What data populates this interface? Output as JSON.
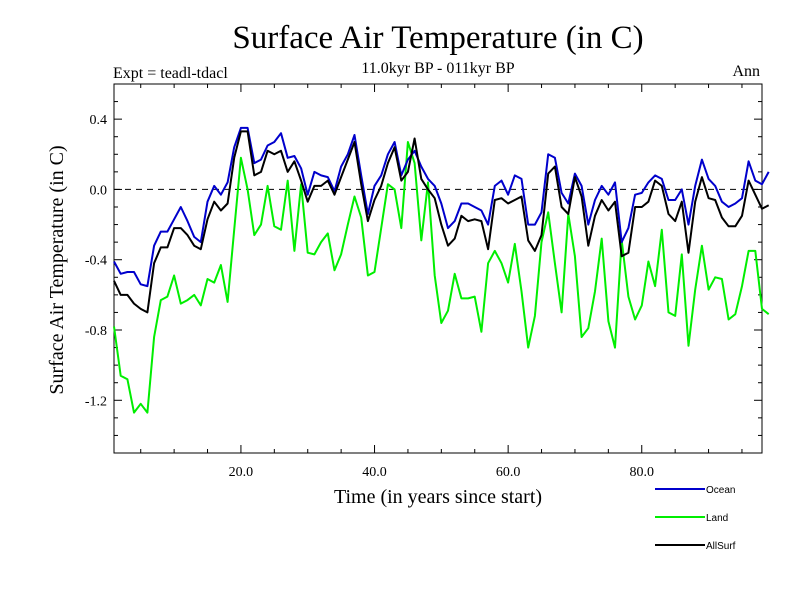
{
  "chart_data": {
    "type": "line",
    "title": "Surface Air Temperature (in C)",
    "subtitle": "11.0kyr BP - 011kyr BP",
    "left_label": "Expt = teadl-tdacl",
    "right_label": "Ann",
    "xlabel": "Time (in years since start)",
    "ylabel": "Surface Air Temperature (in C)",
    "xlim": [
      1,
      98
    ],
    "ylim": [
      -1.5,
      0.6
    ],
    "xticks": [
      20,
      40,
      60,
      80
    ],
    "xtick_labels": [
      "20.0",
      "40.0",
      "60.0",
      "80.0"
    ],
    "yticks": [
      0.4,
      0.0,
      -0.4,
      -0.8,
      -1.2
    ],
    "ytick_labels": [
      "0.4",
      "0.0",
      "-0.4",
      "-0.8",
      "-1.2"
    ],
    "reference_line": 0.0,
    "x_start": 1,
    "series": [
      {
        "name": "Ocean",
        "color": "#0000cc",
        "values": [
          -0.41,
          -0.48,
          -0.47,
          -0.47,
          -0.54,
          -0.55,
          -0.32,
          -0.24,
          -0.24,
          -0.17,
          -0.1,
          -0.18,
          -0.27,
          -0.3,
          -0.07,
          0.02,
          -0.03,
          0.04,
          0.24,
          0.35,
          0.35,
          0.15,
          0.17,
          0.25,
          0.27,
          0.32,
          0.18,
          0.19,
          0.12,
          -0.03,
          0.1,
          0.08,
          0.07,
          -0.01,
          0.13,
          0.2,
          0.31,
          0.08,
          -0.14,
          0.02,
          0.08,
          0.2,
          0.27,
          0.08,
          0.17,
          0.22,
          0.13,
          0.06,
          0.02,
          -0.08,
          -0.22,
          -0.18,
          -0.08,
          -0.08,
          -0.1,
          -0.12,
          -0.2,
          0.02,
          0.05,
          -0.03,
          0.08,
          0.06,
          -0.2,
          -0.2,
          -0.13,
          0.2,
          0.18,
          -0.02,
          -0.08,
          0.09,
          0.02,
          -0.2,
          -0.06,
          0.02,
          -0.03,
          0.04,
          -0.3,
          -0.22,
          -0.03,
          -0.02,
          0.04,
          0.08,
          0.06,
          -0.06,
          -0.06,
          0.0,
          -0.2,
          0.02,
          0.17,
          0.06,
          0.02,
          -0.07,
          -0.1,
          -0.08,
          -0.05,
          0.16,
          0.05,
          0.03,
          0.1
        ]
      },
      {
        "name": "Land",
        "color": "#00ee00",
        "values": [
          -0.78,
          -1.06,
          -1.08,
          -1.27,
          -1.22,
          -1.27,
          -0.84,
          -0.63,
          -0.61,
          -0.49,
          -0.65,
          -0.63,
          -0.6,
          -0.66,
          -0.51,
          -0.53,
          -0.43,
          -0.64,
          -0.23,
          0.18,
          0.0,
          -0.26,
          -0.2,
          0.02,
          -0.21,
          -0.23,
          0.05,
          -0.35,
          0.03,
          -0.36,
          -0.37,
          -0.3,
          -0.25,
          -0.46,
          -0.37,
          -0.2,
          -0.04,
          -0.16,
          -0.49,
          -0.47,
          -0.22,
          0.03,
          0.0,
          -0.22,
          0.27,
          0.15,
          -0.29,
          0.04,
          -0.49,
          -0.76,
          -0.69,
          -0.48,
          -0.62,
          -0.62,
          -0.61,
          -0.81,
          -0.42,
          -0.35,
          -0.42,
          -0.53,
          -0.31,
          -0.58,
          -0.9,
          -0.72,
          -0.3,
          -0.13,
          -0.42,
          -0.7,
          -0.14,
          -0.38,
          -0.84,
          -0.79,
          -0.58,
          -0.28,
          -0.75,
          -0.9,
          -0.29,
          -0.61,
          -0.74,
          -0.66,
          -0.41,
          -0.55,
          -0.23,
          -0.7,
          -0.72,
          -0.37,
          -0.89,
          -0.57,
          -0.32,
          -0.57,
          -0.5,
          -0.51,
          -0.74,
          -0.71,
          -0.55,
          -0.35,
          -0.35,
          -0.68,
          -0.71
        ]
      },
      {
        "name": "AllSurf",
        "color": "#000000",
        "values": [
          -0.52,
          -0.6,
          -0.6,
          -0.65,
          -0.68,
          -0.7,
          -0.42,
          -0.33,
          -0.33,
          -0.22,
          -0.22,
          -0.26,
          -0.32,
          -0.34,
          -0.17,
          -0.07,
          -0.12,
          -0.08,
          0.18,
          0.33,
          0.33,
          0.08,
          0.1,
          0.22,
          0.2,
          0.22,
          0.1,
          0.16,
          0.05,
          -0.07,
          0.02,
          0.02,
          0.05,
          -0.03,
          0.07,
          0.17,
          0.27,
          0.03,
          -0.18,
          -0.06,
          0.02,
          0.15,
          0.24,
          0.05,
          0.1,
          0.29,
          0.06,
          0.0,
          -0.05,
          -0.2,
          -0.32,
          -0.28,
          -0.15,
          -0.18,
          -0.17,
          -0.18,
          -0.34,
          -0.06,
          -0.05,
          -0.08,
          -0.06,
          -0.04,
          -0.29,
          -0.35,
          -0.26,
          0.09,
          0.13,
          -0.1,
          -0.14,
          0.07,
          -0.04,
          -0.32,
          -0.15,
          -0.06,
          -0.12,
          -0.07,
          -0.38,
          -0.36,
          -0.1,
          -0.1,
          -0.07,
          0.05,
          0.02,
          -0.14,
          -0.18,
          -0.07,
          -0.36,
          -0.07,
          0.07,
          -0.05,
          -0.06,
          -0.16,
          -0.21,
          -0.21,
          -0.15,
          0.05,
          -0.03,
          -0.11,
          -0.09
        ]
      }
    ]
  }
}
